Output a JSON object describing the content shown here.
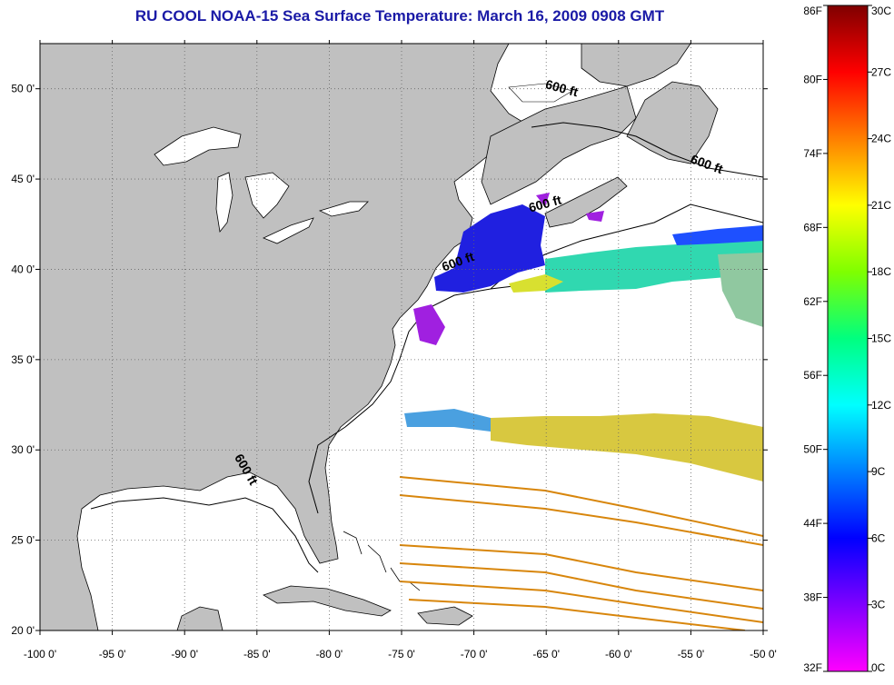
{
  "title": "RU COOL  NOAA-15  Sea Surface Temperature:  March 16, 2009 0908 GMT",
  "map": {
    "lon_range": [
      -100,
      -50
    ],
    "lat_range": [
      20,
      52.5
    ],
    "lon_ticks": [
      "-100 0'",
      "-95 0'",
      "-90 0'",
      "-85 0'",
      "-80 0'",
      "-75 0'",
      "-70 0'",
      "-65 0'",
      "-60 0'",
      "-55 0'",
      "-50 0'"
    ],
    "lat_ticks": [
      "20 0'",
      "25 0'",
      "30 0'",
      "35 0'",
      "40 0'",
      "45 0'",
      "50 0'"
    ],
    "land_color": "#c0c0c0",
    "ocean_color": "#ffffff",
    "grid": "dotted",
    "contour_labels": [
      {
        "text": "600 ft",
        "lon": -64,
        "lat": 49.8
      },
      {
        "text": "600 ft",
        "lon": -54,
        "lat": 45.6
      },
      {
        "text": "600 ft",
        "lon": -65,
        "lat": 43.4
      },
      {
        "text": "600 ft",
        "lon": -71,
        "lat": 40.2
      },
      {
        "text": "600 ft",
        "lon": -86,
        "lat": 28.8
      }
    ]
  },
  "colorbar": {
    "fahrenheit_labels": [
      "86F",
      "80F",
      "74F",
      "68F",
      "62F",
      "56F",
      "50F",
      "44F",
      "38F",
      "32F"
    ],
    "celsius_labels": [
      "30C",
      "27C",
      "24C",
      "21C",
      "18C",
      "15C",
      "12C",
      "9C",
      "6C",
      "3C",
      "0C"
    ],
    "range_c": [
      0,
      30
    ],
    "colors": [
      "#ff00ff",
      "#7f00ff",
      "#0000ff",
      "#007fff",
      "#00ffff",
      "#00ff7f",
      "#7fff00",
      "#ffff00",
      "#ff7f00",
      "#ff0000",
      "#7f0000"
    ]
  }
}
